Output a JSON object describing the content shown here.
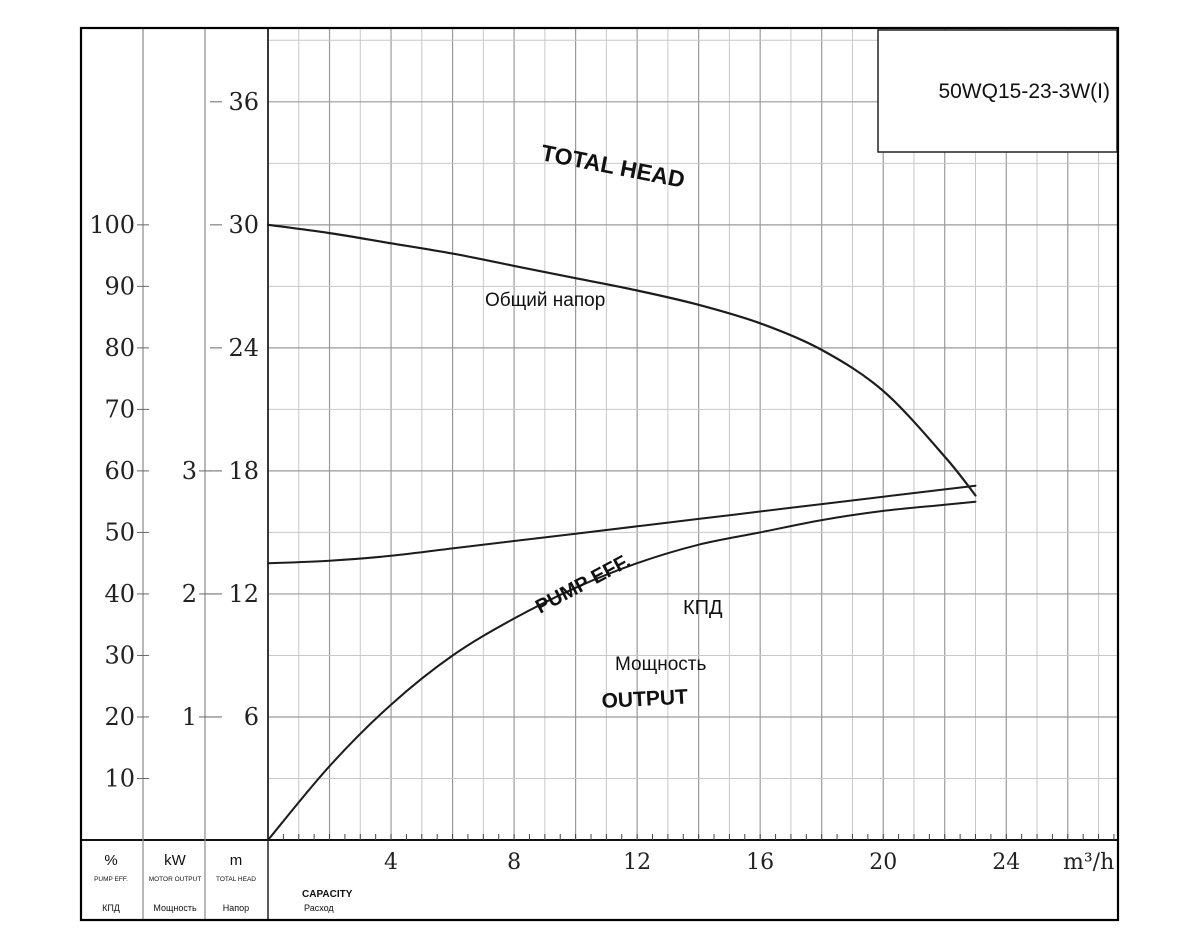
{
  "model_label": "50WQ15-23-3W(I)",
  "footer": {
    "eff_unit": "%",
    "eff_caption_en": "PUMP EFF.",
    "eff_caption_ru": "КПД",
    "power_unit": "kW",
    "power_caption_en": "MOTOR OUTPUT",
    "power_caption_ru": "Мощность",
    "head_unit": "m",
    "head_caption_en": "TOTAL HEAD",
    "head_caption_ru": "Напор",
    "capacity_en": "CAPACITY",
    "capacity_ru": "Расход",
    "x_unit": "m³/h"
  },
  "chart_data": {
    "type": "line",
    "x": [
      0,
      2,
      4,
      6,
      8,
      10,
      12,
      14,
      16,
      18,
      20,
      22,
      23
    ],
    "xlim": [
      0,
      27.6
    ],
    "x_ticks": [
      4,
      8,
      12,
      16,
      20,
      24
    ],
    "xlabel": "CAPACITY",
    "axes": {
      "head": {
        "unit": "m",
        "ylim": [
          0,
          39.6
        ],
        "ticks": [
          6,
          12,
          18,
          24,
          30,
          36
        ]
      },
      "efficiency": {
        "unit": "%",
        "ylim": [
          0,
          132
        ],
        "ticks": [
          10,
          20,
          30,
          40,
          50,
          60,
          70,
          80,
          90,
          100
        ]
      },
      "power": {
        "unit": "kW",
        "ylim": [
          0,
          6.6
        ],
        "ticks": [
          1,
          2,
          3
        ]
      }
    },
    "grid": true,
    "series": [
      {
        "name": "TOTAL HEAD",
        "name_ru": "Общий напор",
        "axis": "head",
        "values": [
          30,
          29.6,
          29.1,
          28.6,
          28.0,
          27.4,
          26.8,
          26.1,
          25.2,
          23.9,
          21.9,
          18.7,
          16.8
        ]
      },
      {
        "name": "PUMP EFF.",
        "name_ru": "КПД",
        "axis": "efficiency",
        "values": [
          0,
          12,
          22,
          30,
          36,
          41,
          45,
          48,
          50,
          52,
          53.5,
          54.5,
          55
        ]
      },
      {
        "name": "OUTPUT",
        "name_ru": "Мощность",
        "axis": "power",
        "values": [
          2.25,
          2.27,
          2.31,
          2.37,
          2.43,
          2.49,
          2.55,
          2.61,
          2.67,
          2.73,
          2.79,
          2.85,
          2.88
        ]
      }
    ]
  }
}
